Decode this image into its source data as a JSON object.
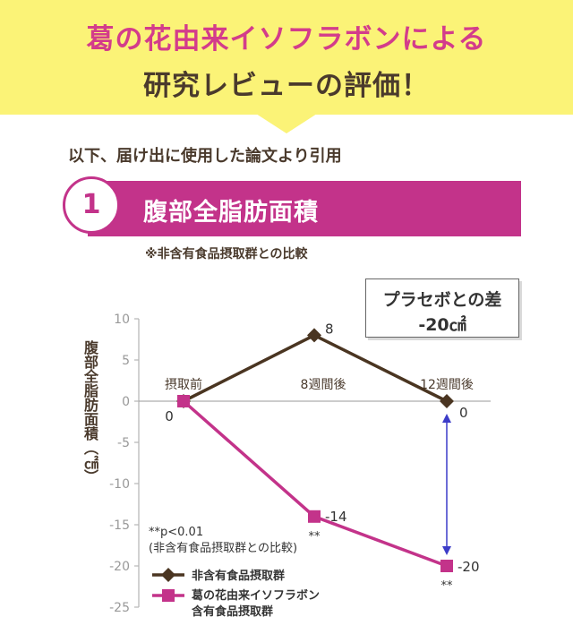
{
  "banner": {
    "line1": "葛の花由来イソフラボンによる",
    "line2": "研究レビューの評価！"
  },
  "intro": "以下、届け出に使用した論文より引用",
  "section": {
    "number": "1",
    "title": "腹部全脂肪面積",
    "note": "※非含有食品摂取群との比較"
  },
  "compare_box": {
    "line1": "プラセボとの差",
    "line2": "-20㎠"
  },
  "colors": {
    "banner_bg": "#fbf377",
    "accent_pink": "#c3338a",
    "series_brown": "#4a3521",
    "series_pink": "#c3338a",
    "arrow_blue": "#3c3cc8"
  },
  "chart_data": {
    "type": "line",
    "ylabel": "腹部全脂肪面積（㎠）",
    "ylim": [
      -25,
      10
    ],
    "yticks": [
      10,
      5,
      0,
      -5,
      -10,
      -15,
      -20,
      -25
    ],
    "categories": [
      "摂取前",
      "8週間後",
      "12週間後"
    ],
    "series": [
      {
        "name": "非含有食品摂取群",
        "values": [
          0,
          8,
          0
        ],
        "color": "#4a3521",
        "marker": "diamond",
        "labels": [
          "0",
          "8",
          "0"
        ]
      },
      {
        "name": "葛の花由来イソフラボン含有食品摂取群",
        "name_lines": [
          "葛の花由来イソフラボン",
          "含有食品摂取群"
        ],
        "values": [
          0,
          -14,
          -20
        ],
        "color": "#c3338a",
        "marker": "square",
        "labels": [
          "",
          "-14",
          "-20"
        ]
      }
    ],
    "significance": {
      "marker": "**",
      "points": [
        1,
        2
      ]
    },
    "footnote": [
      "**p<0.01",
      "(非含有食品摂取群との比較)"
    ],
    "difference_arrow": {
      "category_index": 2,
      "from": 0,
      "to": -20
    },
    "grid": false,
    "zero_line": true,
    "legend_position": "bottom-left"
  }
}
